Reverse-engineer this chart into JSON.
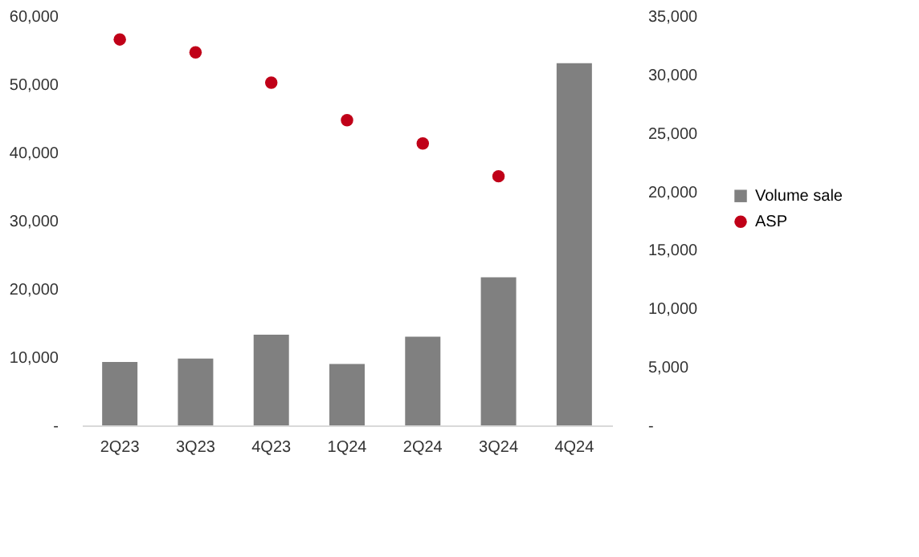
{
  "chart_data": {
    "type": "bar",
    "categories": [
      "2Q23",
      "3Q23",
      "4Q23",
      "1Q24",
      "2Q24",
      "3Q24",
      "4Q24"
    ],
    "series": [
      {
        "name": "Volume sale",
        "color": "#808080",
        "values": [
          9300,
          9800,
          13300,
          9000,
          13000,
          21700,
          53100
        ]
      },
      {
        "name": "ASP",
        "type": "scatter",
        "axis": "y2",
        "color": "#c00018",
        "marker": "circle",
        "values": [
          33000,
          31900,
          29300,
          26100,
          24100,
          21300,
          null
        ]
      }
    ],
    "ylim": [
      0,
      60000
    ],
    "yticks": [
      {
        "value": 0,
        "label": "-"
      },
      {
        "value": 10000,
        "label": "10,000"
      },
      {
        "value": 20000,
        "label": "20,000"
      },
      {
        "value": 30000,
        "label": "30,000"
      },
      {
        "value": 40000,
        "label": "40,000"
      },
      {
        "value": 50000,
        "label": "50,000"
      },
      {
        "value": 60000,
        "label": "60,000"
      }
    ],
    "y2lim": [
      0,
      35000
    ],
    "y2ticks": [
      {
        "value": 0,
        "label": "-"
      },
      {
        "value": 5000,
        "label": "5,000"
      },
      {
        "value": 10000,
        "label": "10,000"
      },
      {
        "value": 15000,
        "label": "15,000"
      },
      {
        "value": 20000,
        "label": "20,000"
      },
      {
        "value": 25000,
        "label": "25,000"
      },
      {
        "value": 30000,
        "label": "30,000"
      },
      {
        "value": 35000,
        "label": "35,000"
      }
    ],
    "legend": "right",
    "grid": false
  }
}
